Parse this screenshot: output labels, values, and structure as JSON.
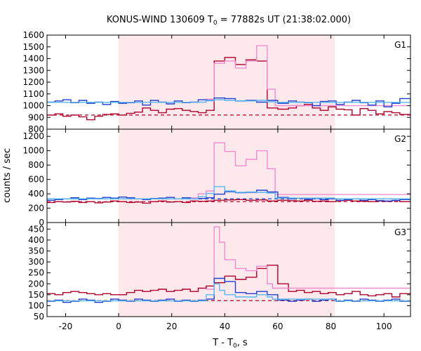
{
  "chart_data": {
    "type": "line",
    "title": "KONUS-WIND 130609 T",
    "title_sub": "0",
    "title_rest": " = 77882s UT (21:38:02.000)",
    "xlabel": "T - T",
    "xlabel_sub": "0",
    "xlabel_rest": ", s",
    "ylabel": "counts / sec",
    "xlim": [
      -27,
      110
    ],
    "xticks": [
      -20,
      0,
      20,
      40,
      60,
      80,
      100
    ],
    "shaded_interval": [
      0,
      81.5
    ],
    "colors": {
      "shade": "#fde8ec",
      "dark_red": "#b0002a",
      "pink": "#f08ccf",
      "blue": "#1f3fd0",
      "light_blue": "#55b8f0",
      "dashed_red": "#b0002a",
      "dashed_blue": "#1f3fd0"
    },
    "panels": [
      {
        "name": "G1",
        "ylim": [
          800,
          1600
        ],
        "yticks": [
          800,
          900,
          1000,
          1100,
          1200,
          1300,
          1400,
          1500,
          1600
        ],
        "background_level": 920,
        "background_color": "dashed_red",
        "series": [
          {
            "color": "dark_red",
            "x": [
              -27,
              -24,
              -21,
              -18,
              -15,
              -12,
              -9,
              -6,
              -3,
              0,
              3,
              6,
              9,
              12,
              15,
              18,
              21,
              24,
              27,
              30,
              33,
              36,
              40,
              44,
              48,
              52,
              56,
              60,
              64,
              67,
              70,
              73,
              76,
              79,
              82,
              85,
              88,
              91,
              94,
              97,
              100,
              103,
              106,
              110
            ],
            "y": [
              920,
              930,
              910,
              920,
              905,
              880,
              910,
              925,
              930,
              920,
              935,
              945,
              980,
              960,
              940,
              970,
              975,
              960,
              950,
              940,
              960,
              1380,
              1410,
              1350,
              1390,
              1380,
              980,
              970,
              980,
              1000,
              1010,
              980,
              960,
              990,
              970,
              965,
              920,
              975,
              960,
              930,
              950,
              940,
              925,
              920
            ]
          },
          {
            "color": "pink",
            "x": [
              33,
              36,
              40,
              44,
              48,
              52,
              56,
              59
            ],
            "y": [
              1055,
              1360,
              1380,
              1320,
              1380,
              1510,
              1140,
              1000
            ]
          },
          {
            "color": "blue",
            "x": [
              -27,
              -24,
              -21,
              -18,
              -15,
              -12,
              -9,
              -6,
              -3,
              0,
              3,
              6,
              9,
              12,
              15,
              18,
              21,
              24,
              27,
              30,
              33,
              36,
              40,
              44,
              48,
              52,
              56,
              60,
              64,
              67,
              70,
              73,
              76,
              79,
              82,
              85,
              88,
              91,
              94,
              97,
              100,
              103,
              106,
              110
            ],
            "y": [
              1030,
              1040,
              1050,
              1025,
              1045,
              1020,
              1030,
              1010,
              1035,
              1020,
              1025,
              1040,
              1005,
              1045,
              1030,
              1015,
              1040,
              1025,
              1030,
              1050,
              1045,
              1065,
              1060,
              1040,
              1045,
              1030,
              1045,
              1020,
              1040,
              1030,
              1025,
              1000,
              1035,
              1040,
              1010,
              1030,
              1045,
              1025,
              1005,
              1040,
              990,
              1020,
              1060,
              1030
            ]
          },
          {
            "color": "light_blue",
            "x": [
              -27,
              0,
              30,
              33,
              36,
              40,
              44,
              48,
              52,
              56,
              59,
              81.5,
              110
            ],
            "y": [
              1028,
              1028,
              1030,
              1042,
              1050,
              1045,
              1042,
              1040,
              1045,
              1032,
              1028,
              1028,
              1028
            ]
          }
        ]
      },
      {
        "name": "G2",
        "ylim": [
          0,
          1300
        ],
        "yticks": [
          0,
          200,
          400,
          600,
          800,
          1000,
          1200
        ],
        "background_level": 290,
        "background_color": "dashed_red",
        "background_level_2": 330,
        "background_color_2": "dashed_blue",
        "series": [
          {
            "color": "dark_red",
            "x": [
              -27,
              -24,
              -21,
              -18,
              -15,
              -12,
              -9,
              -6,
              -3,
              0,
              3,
              6,
              9,
              12,
              15,
              18,
              21,
              24,
              27,
              30,
              33,
              36,
              40,
              44,
              48,
              52,
              56,
              60,
              64,
              67,
              70,
              73,
              76,
              79,
              82,
              85,
              88,
              91,
              94,
              97,
              100,
              103,
              106,
              110
            ],
            "y": [
              280,
              290,
              285,
              295,
              280,
              290,
              275,
              285,
              300,
              290,
              280,
              285,
              270,
              290,
              300,
              285,
              290,
              280,
              300,
              295,
              300,
              310,
              315,
              320,
              310,
              315,
              300,
              310,
              305,
              300,
              310,
              295,
              300,
              290,
              305,
              310,
              300,
              295,
              290,
              300,
              295,
              305,
              290,
              300
            ]
          },
          {
            "color": "pink",
            "x": [
              27,
              30,
              33,
              36,
              40,
              44,
              48,
              52,
              56,
              59
            ],
            "y": [
              345,
              400,
              440,
              1110,
              990,
              790,
              880,
              1000,
              750,
              390
            ]
          },
          {
            "color": "blue",
            "x": [
              -27,
              -24,
              -21,
              -18,
              -15,
              -12,
              -9,
              -6,
              -3,
              0,
              3,
              6,
              9,
              12,
              15,
              18,
              21,
              24,
              27,
              30,
              33,
              36,
              40,
              44,
              48,
              52,
              56,
              60,
              64,
              67,
              70,
              73,
              76,
              79,
              82,
              85,
              88,
              91,
              94,
              97,
              100,
              103,
              106,
              110
            ],
            "y": [
              310,
              320,
              330,
              345,
              320,
              340,
              335,
              350,
              340,
              355,
              345,
              330,
              320,
              335,
              340,
              350,
              330,
              345,
              330,
              335,
              345,
              395,
              430,
              415,
              420,
              450,
              425,
              350,
              330,
              340,
              325,
              335,
              320,
              330,
              310,
              320,
              330,
              310,
              320,
              305,
              300,
              310,
              320,
              310
            ]
          },
          {
            "color": "light_blue",
            "x": [
              -27,
              0,
              27,
              30,
              33,
              36,
              40,
              44,
              48,
              52,
              56,
              59,
              81.5,
              110
            ],
            "y": [
              330,
              330,
              330,
              360,
              405,
              500,
              440,
              420,
              425,
              420,
              410,
              340,
              330,
              330
            ]
          }
        ]
      },
      {
        "name": "G3",
        "ylim": [
          50,
          480
        ],
        "yticks": [
          50,
          100,
          150,
          200,
          250,
          300,
          350,
          400,
          450
        ],
        "background_level": 123,
        "background_color": "dashed_red",
        "series": [
          {
            "color": "dark_red",
            "x": [
              -27,
              -24,
              -21,
              -18,
              -15,
              -12,
              -9,
              -6,
              -3,
              0,
              3,
              6,
              9,
              12,
              15,
              18,
              21,
              24,
              27,
              30,
              33,
              36,
              40,
              44,
              48,
              52,
              56,
              60,
              64,
              67,
              70,
              73,
              76,
              79,
              82,
              85,
              88,
              91,
              94,
              97,
              100,
              103,
              106,
              110
            ],
            "y": [
              155,
              150,
              160,
              165,
              160,
              155,
              150,
              155,
              150,
              150,
              160,
              170,
              165,
              170,
              175,
              165,
              170,
              175,
              165,
              180,
              190,
              205,
              235,
              220,
              230,
              270,
              285,
              200,
              165,
              170,
              160,
              165,
              155,
              160,
              150,
              155,
              165,
              150,
              145,
              150,
              155,
              140,
              155,
              150
            ]
          },
          {
            "color": "pink",
            "x": [
              33,
              36,
              38,
              40,
              44,
              48,
              52,
              56,
              58
            ],
            "y": [
              175,
              460,
              390,
              310,
              270,
              260,
              280,
              200,
              180
            ]
          },
          {
            "color": "blue",
            "x": [
              -27,
              -24,
              -21,
              -18,
              -15,
              -12,
              -9,
              -6,
              -3,
              0,
              3,
              6,
              9,
              12,
              15,
              18,
              21,
              24,
              27,
              30,
              33,
              36,
              40,
              44,
              48,
              52,
              56,
              60,
              64,
              67,
              70,
              73,
              76,
              79,
              82,
              85,
              88,
              91,
              94,
              97,
              100,
              103,
              106,
              110
            ],
            "y": [
              120,
              125,
              115,
              120,
              130,
              125,
              115,
              120,
              130,
              125,
              120,
              130,
              125,
              120,
              125,
              130,
              120,
              125,
              120,
              125,
              130,
              225,
              210,
              160,
              155,
              165,
              150,
              125,
              120,
              125,
              130,
              120,
              125,
              130,
              120,
              125,
              120,
              130,
              125,
              120,
              125,
              130,
              120,
              125
            ]
          },
          {
            "color": "light_blue",
            "x": [
              -27,
              0,
              30,
              33,
              36,
              38,
              40,
              44,
              48,
              52,
              56,
              58,
              81.5,
              110
            ],
            "y": [
              122,
              122,
              122,
              150,
              200,
              170,
              150,
              140,
              140,
              150,
              140,
              130,
              122,
              122
            ]
          }
        ]
      }
    ]
  }
}
